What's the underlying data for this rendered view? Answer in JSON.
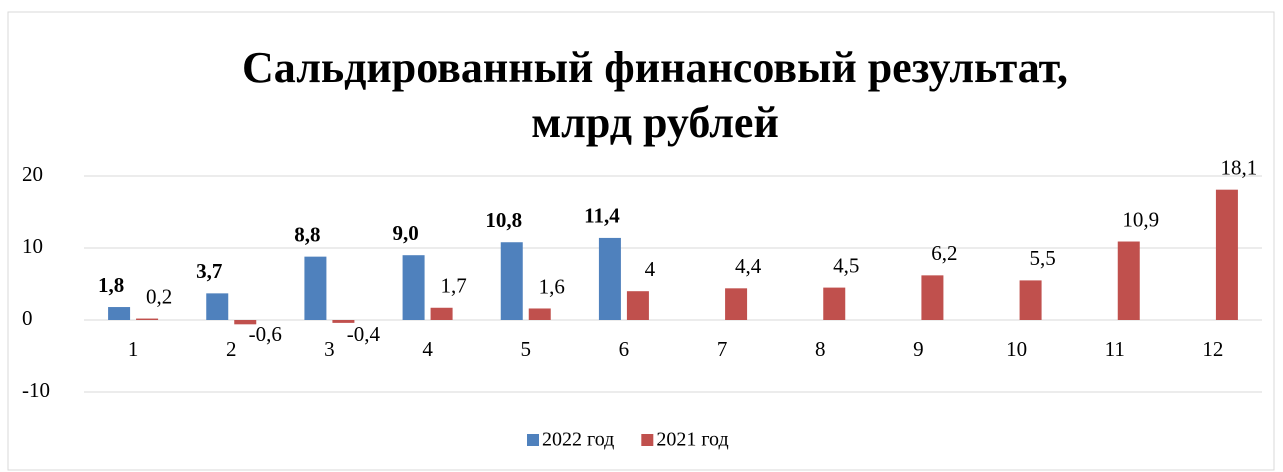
{
  "chart_data": {
    "type": "bar",
    "title": [
      "Сальдированный финансовый результат,",
      "млрд рублей"
    ],
    "categories": [
      "1",
      "2",
      "3",
      "4",
      "5",
      "6",
      "7",
      "8",
      "9",
      "10",
      "11",
      "12"
    ],
    "series": [
      {
        "name": "2022 год",
        "color": "#4f81bd",
        "values": [
          1.8,
          3.7,
          8.8,
          9.0,
          10.8,
          11.4,
          null,
          null,
          null,
          null,
          null,
          null
        ],
        "value_labels": [
          "1,8",
          "3,7",
          "8,8",
          "9,0",
          "10,8",
          "11,4",
          null,
          null,
          null,
          null,
          null,
          null
        ]
      },
      {
        "name": "2021 год",
        "color": "#c0504d",
        "values": [
          0.2,
          -0.6,
          -0.4,
          1.7,
          1.6,
          4,
          4.4,
          4.5,
          6.2,
          5.5,
          10.9,
          18.1
        ],
        "value_labels": [
          "0,2",
          "-0,6",
          "-0,4",
          "1,7",
          "1,6",
          "4",
          "4,4",
          "4,5",
          "6,2",
          "5,5",
          "10,9",
          "18,1"
        ]
      }
    ],
    "ylim": [
      -10,
      20
    ],
    "yticks": [
      -10,
      0,
      10,
      20
    ],
    "grid": true,
    "legend": "bottom"
  }
}
